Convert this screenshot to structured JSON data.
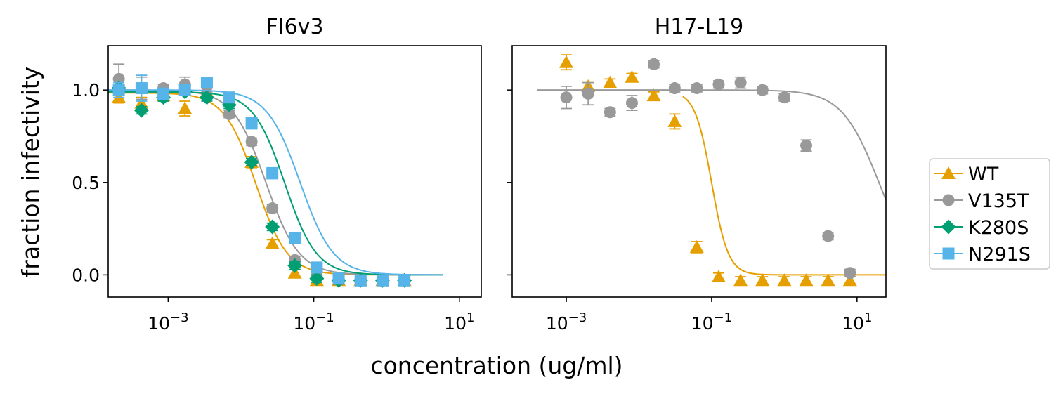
{
  "figure": {
    "xlabel": "concentration (ug/ml)",
    "ylabel": "fraction infectivity"
  },
  "legend": {
    "position": "center-right",
    "entries": [
      {
        "label": "WT",
        "color": "#E69F00",
        "marker": "triangle"
      },
      {
        "label": "V135T",
        "color": "#999999",
        "marker": "circle"
      },
      {
        "label": "K280S",
        "color": "#009E73",
        "marker": "diamond"
      },
      {
        "label": "N291S",
        "color": "#56B4E9",
        "marker": "square"
      }
    ]
  },
  "chart_data": [
    {
      "type": "scatter",
      "title": "FI6v3",
      "xscale": "log",
      "xlim": [
        0.00015,
        20
      ],
      "ylim": [
        -0.12,
        1.24
      ],
      "xticks": [
        0.001,
        0.1,
        10
      ],
      "xtick_labels": [
        "10^-3",
        "10^-1",
        "10^1"
      ],
      "yticks": [
        0.0,
        0.5,
        1.0
      ],
      "ytick_labels": [
        "0.0",
        "0.5",
        "1.0"
      ],
      "grid": false,
      "series": [
        {
          "name": "WT",
          "color": "#E69F00",
          "marker": "triangle",
          "x": [
            0.00021,
            0.00043,
            0.00086,
            0.0017,
            0.0034,
            0.0069,
            0.014,
            0.027,
            0.055,
            0.11,
            0.22,
            0.44,
            0.88,
            1.76
          ],
          "y": [
            0.96,
            0.93,
            0.97,
            0.9,
            0.99,
            0.89,
            0.61,
            0.17,
            0.01,
            -0.03,
            -0.03,
            -0.03,
            -0.03,
            -0.03
          ],
          "err": [
            0.03,
            0.03,
            0.03,
            0.04,
            0.03,
            0.03,
            0.03,
            0.02,
            0.02,
            0.02,
            0.02,
            0.02,
            0.02,
            0.02
          ],
          "fit": {
            "ic50": 0.016,
            "hill": 2.0,
            "top": 0.985,
            "bottom": 0.0,
            "x_range": [
              0.00012,
              6.0
            ]
          }
        },
        {
          "name": "V135T",
          "color": "#999999",
          "marker": "circle",
          "x": [
            0.00021,
            0.00043,
            0.00086,
            0.0017,
            0.0034,
            0.0069,
            0.014,
            0.027,
            0.055,
            0.11,
            0.22,
            0.44,
            0.88,
            1.76
          ],
          "y": [
            1.06,
            1.01,
            1.01,
            1.03,
            1.02,
            0.87,
            0.72,
            0.36,
            0.08,
            -0.01,
            -0.03,
            -0.02,
            -0.03,
            -0.03
          ],
          "err": [
            0.08,
            0.06,
            0.02,
            0.04,
            0.03,
            0.02,
            0.02,
            0.02,
            0.02,
            0.02,
            0.02,
            0.02,
            0.02,
            0.02
          ],
          "fit": {
            "ic50": 0.022,
            "hill": 1.9,
            "top": 1.0,
            "bottom": 0.0,
            "x_range": [
              0.00012,
              6.0
            ]
          }
        },
        {
          "name": "K280S",
          "color": "#009E73",
          "marker": "diamond",
          "x": [
            0.00021,
            0.00043,
            0.00086,
            0.0017,
            0.0034,
            0.0069,
            0.014,
            0.027,
            0.055,
            0.11,
            0.22,
            0.44,
            0.88,
            1.76
          ],
          "y": [
            1.01,
            0.89,
            0.96,
            0.99,
            0.96,
            0.92,
            0.61,
            0.26,
            0.05,
            -0.02,
            -0.03,
            -0.03,
            -0.03,
            -0.03
          ],
          "err": [
            0.02,
            0.02,
            0.02,
            0.02,
            0.02,
            0.02,
            0.02,
            0.02,
            0.02,
            0.02,
            0.02,
            0.02,
            0.02,
            0.02
          ],
          "fit": {
            "ic50": 0.04,
            "hill": 2.0,
            "top": 0.99,
            "bottom": 0.0,
            "x_range": [
              0.00012,
              6.0
            ]
          }
        },
        {
          "name": "N291S",
          "color": "#56B4E9",
          "marker": "square",
          "x": [
            0.00021,
            0.00043,
            0.00086,
            0.0017,
            0.0034,
            0.0069,
            0.014,
            0.027,
            0.055,
            0.11,
            0.22,
            0.44,
            0.88,
            1.76
          ],
          "y": [
            1.0,
            1.01,
            0.98,
            1.0,
            1.04,
            0.96,
            0.82,
            0.55,
            0.2,
            0.04,
            -0.02,
            -0.03,
            -0.03,
            -0.03
          ],
          "err": [
            0.04,
            0.07,
            0.03,
            0.02,
            0.02,
            0.02,
            0.03,
            0.03,
            0.03,
            0.02,
            0.02,
            0.02,
            0.02,
            0.02
          ],
          "fit": {
            "ic50": 0.065,
            "hill": 1.9,
            "top": 1.0,
            "bottom": 0.0,
            "x_range": [
              0.00012,
              6.0
            ]
          }
        }
      ]
    },
    {
      "type": "scatter",
      "title": "H17-L19",
      "xscale": "log",
      "xlim": [
        0.00018,
        25
      ],
      "ylim": [
        -0.12,
        1.24
      ],
      "xticks": [
        0.001,
        0.1,
        10
      ],
      "xtick_labels": [
        "10^-3",
        "10^-1",
        "10^1"
      ],
      "yticks": [
        0.0,
        0.5,
        1.0
      ],
      "ytick_labels": [],
      "grid": false,
      "series": [
        {
          "name": "WT",
          "color": "#E69F00",
          "marker": "triangle",
          "x": [
            0.001,
            0.002,
            0.004,
            0.008,
            0.016,
            0.031,
            0.0625,
            0.125,
            0.25,
            0.5,
            1.0,
            2.0,
            4.0,
            8.0
          ],
          "y": [
            1.15,
            1.02,
            1.04,
            1.07,
            0.97,
            0.83,
            0.15,
            -0.01,
            -0.03,
            -0.03,
            -0.03,
            -0.03,
            -0.03,
            -0.03
          ],
          "err": [
            0.04,
            0.02,
            0.02,
            0.02,
            0.02,
            0.04,
            0.03,
            0.02,
            0.02,
            0.02,
            0.02,
            0.02,
            0.02,
            0.02
          ],
          "fit": {
            "ic50": 0.1,
            "hill": 3.8,
            "top": 0.995,
            "bottom": 0.0,
            "x_range": [
              0.04,
              25
            ]
          }
        },
        {
          "name": "V135T",
          "color": "#999999",
          "marker": "circle",
          "x": [
            0.001,
            0.002,
            0.004,
            0.008,
            0.016,
            0.031,
            0.0625,
            0.125,
            0.25,
            0.5,
            1.0,
            2.0,
            4.0,
            8.0
          ],
          "y": [
            0.96,
            0.98,
            0.88,
            0.93,
            1.14,
            1.01,
            1.01,
            1.03,
            1.04,
            1.0,
            0.96,
            0.7,
            0.21,
            0.01
          ],
          "err": [
            0.06,
            0.06,
            0.02,
            0.04,
            0.02,
            0.02,
            0.02,
            0.02,
            0.03,
            0.02,
            0.02,
            0.03,
            0.02,
            0.02
          ],
          "fit": {
            "ic50": 20,
            "hill": 1.7,
            "top": 1.0,
            "bottom": 0.0,
            "x_range": [
              0.0004,
              25
            ]
          }
        }
      ]
    }
  ]
}
